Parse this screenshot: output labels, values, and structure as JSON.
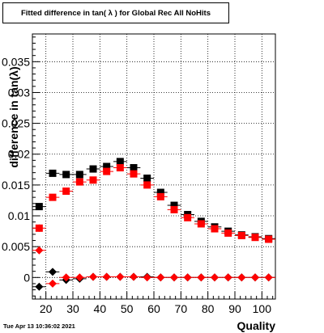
{
  "title": "Fitted difference in tan( λ ) for Global Rec All NoHits",
  "timestamp": "Tue Apr 13 10:36:02 2021",
  "chart_data": {
    "type": "scatter",
    "xlabel": "Quality",
    "ylabel": "difference in tan(λ)",
    "xlim": [
      15,
      105
    ],
    "ylim": [
      -0.0035,
      0.0395
    ],
    "xticks": [
      20,
      30,
      40,
      50,
      60,
      70,
      80,
      90,
      100
    ],
    "xtick_labels": [
      "20",
      "30",
      "40",
      "50",
      "60",
      "70",
      "80",
      "90",
      "100"
    ],
    "yticks": [
      0,
      0.005,
      0.01,
      0.015,
      0.02,
      0.025,
      0.03,
      0.035
    ],
    "ytick_labels": [
      "0",
      "0.005",
      "0.01",
      "0.015",
      "0.02",
      "0.025",
      "0.03",
      "0.035"
    ],
    "grid": true,
    "series": [
      {
        "marker": "square",
        "color": "#000000",
        "x": [
          17.5,
          22.5,
          27.5,
          32.5,
          37.5,
          42.5,
          47.5,
          52.5,
          57.5,
          62.5,
          67.5,
          72.5,
          77.5,
          82.5,
          87.5,
          92.5,
          97.5,
          102.5
        ],
        "y": [
          0.0115,
          0.0169,
          0.0167,
          0.0167,
          0.0176,
          0.018,
          0.0188,
          0.0178,
          0.0161,
          0.0138,
          0.0117,
          0.0102,
          0.0091,
          0.0082,
          0.0075,
          0.0069,
          0.0066,
          0.0063
        ],
        "yerr": [
          0.0005,
          0.0004,
          0.0003,
          0.0003,
          0.0003,
          0.0003,
          0.0003,
          0.0003,
          0.0003,
          0.0003,
          0.0003,
          0.0003,
          0.0002,
          0.0002,
          0.0002,
          0.0002,
          0.0002,
          0.0002
        ]
      },
      {
        "marker": "square",
        "color": "#ff0000",
        "x": [
          17.5,
          22.5,
          27.5,
          32.5,
          37.5,
          42.5,
          47.5,
          52.5,
          57.5,
          62.5,
          67.5,
          72.5,
          77.5,
          82.5,
          87.5,
          92.5,
          97.5,
          102.5
        ],
        "y": [
          0.008,
          0.013,
          0.014,
          0.0155,
          0.0158,
          0.0172,
          0.0178,
          0.0168,
          0.015,
          0.0131,
          0.011,
          0.0097,
          0.0087,
          0.0079,
          0.0072,
          0.0068,
          0.0065,
          0.0062
        ],
        "yerr": [
          0.0006,
          0.0005,
          0.0004,
          0.0004,
          0.0004,
          0.0003,
          0.0003,
          0.0003,
          0.0003,
          0.0003,
          0.0003,
          0.0003,
          0.0002,
          0.0002,
          0.0002,
          0.0002,
          0.0002,
          0.0002
        ]
      },
      {
        "marker": "diamond",
        "color": "#000000",
        "x": [
          17.5,
          22.5,
          27.5,
          32.5,
          37.5,
          42.5,
          47.5,
          52.5,
          57.5,
          62.5,
          67.5,
          72.5,
          77.5,
          82.5,
          87.5,
          92.5,
          97.5,
          102.5
        ],
        "y": [
          -0.0015,
          0.0009,
          -0.0004,
          -0.0002,
          0.0001,
          0.0001,
          0.0001,
          0.0001,
          0.0001,
          0.0,
          0.0,
          0.0,
          0.0,
          0.0,
          0.0,
          0.0,
          0.0,
          0.0
        ],
        "yerr": [
          0.0003,
          0.0002,
          0.0002,
          0.0002,
          0.0001,
          0.0001,
          0.0001,
          0.0001,
          0.0001,
          0.0001,
          0.0001,
          0.0001,
          0.0001,
          0.0001,
          0.0001,
          0.0001,
          0.0001,
          0.0001
        ]
      },
      {
        "marker": "diamond",
        "color": "#ff0000",
        "x": [
          17.5,
          22.5,
          27.5,
          32.5,
          37.5,
          42.5,
          47.5,
          52.5,
          57.5,
          62.5,
          67.5,
          72.5,
          77.5,
          82.5,
          87.5,
          92.5,
          97.5,
          102.5
        ],
        "y": [
          0.0044,
          -0.001,
          0.0,
          0.0,
          0.0001,
          0.0001,
          0.0001,
          0.0001,
          0.0,
          0.0,
          0.0,
          0.0,
          0.0,
          0.0,
          0.0,
          0.0,
          0.0,
          0.0
        ],
        "yerr": [
          0.0004,
          0.0002,
          0.0002,
          0.0001,
          0.0001,
          0.0001,
          0.0001,
          0.0001,
          0.0001,
          0.0001,
          0.0001,
          0.0001,
          0.0001,
          0.0001,
          0.0001,
          0.0001,
          0.0001,
          0.0001
        ]
      }
    ]
  }
}
